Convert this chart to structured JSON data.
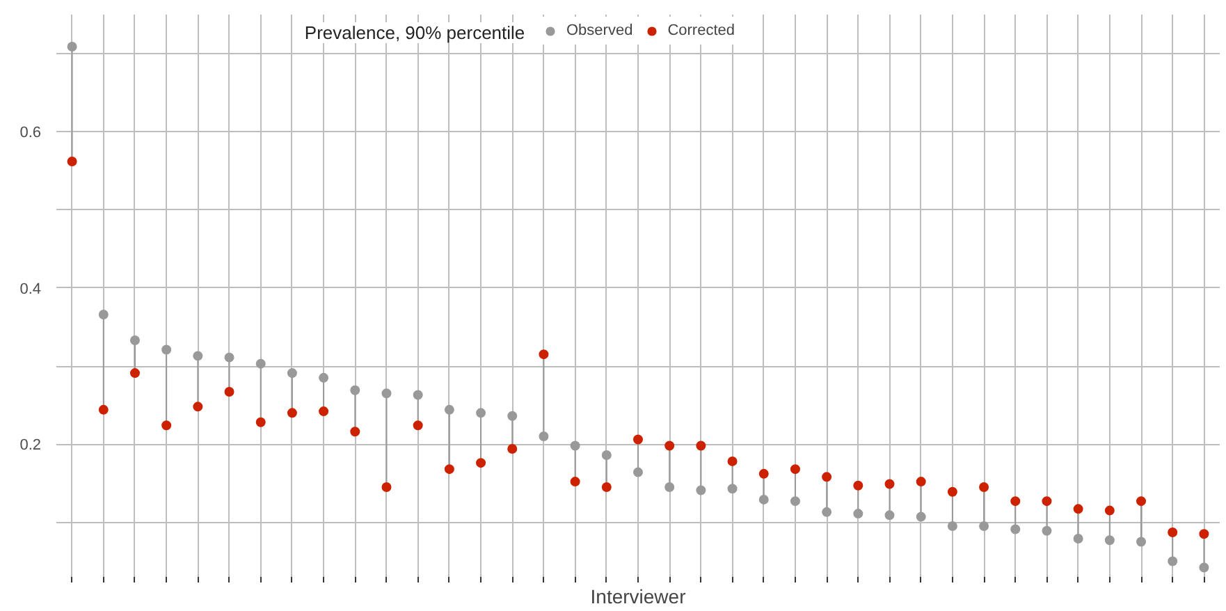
{
  "chart_data": {
    "type": "scatter",
    "xlabel": "Interviewer",
    "legend_title": "Prevalence, 90% percentile",
    "legend": "top",
    "grid": true,
    "marker": "circle",
    "categories": [
      null,
      null,
      null,
      null,
      null,
      null,
      null,
      null,
      null,
      null,
      null,
      null,
      null,
      null,
      null,
      null,
      null,
      null,
      null,
      null,
      null,
      null,
      null,
      null,
      null,
      null,
      null,
      null,
      null,
      null,
      null,
      null,
      null,
      null,
      null,
      null,
      null
    ],
    "ylim": [
      0.03,
      0.75
    ],
    "yticks": [
      {
        "value": 0.1,
        "label": null
      },
      0.2,
      {
        "value": 0.3,
        "label": null
      },
      0.4,
      {
        "value": 0.5,
        "label": null
      },
      0.6,
      {
        "value": 0.7,
        "label": null
      }
    ],
    "series": [
      {
        "name": "Observed",
        "color": "#999999",
        "values": [
          0.709,
          0.366,
          0.333,
          0.321,
          0.313,
          0.311,
          0.303,
          0.291,
          0.285,
          0.269,
          0.265,
          0.263,
          0.244,
          0.24,
          0.236,
          0.21,
          0.198,
          0.186,
          0.164,
          0.145,
          0.141,
          0.143,
          0.129,
          0.127,
          0.113,
          0.111,
          0.109,
          0.107,
          0.095,
          0.095,
          0.091,
          0.089,
          0.079,
          0.077,
          0.075,
          0.05,
          0.042
        ]
      },
      {
        "name": "Corrected",
        "color": "#cc2200",
        "values": [
          0.562,
          0.244,
          0.291,
          0.224,
          0.248,
          0.267,
          0.228,
          0.24,
          0.242,
          0.216,
          0.145,
          0.224,
          0.168,
          0.176,
          0.194,
          0.315,
          0.152,
          0.145,
          0.206,
          0.198,
          0.198,
          0.178,
          0.162,
          0.168,
          0.158,
          0.147,
          0.149,
          0.152,
          0.139,
          0.145,
          0.127,
          0.127,
          0.117,
          0.115,
          0.127,
          0.087,
          0.085
        ]
      }
    ]
  }
}
